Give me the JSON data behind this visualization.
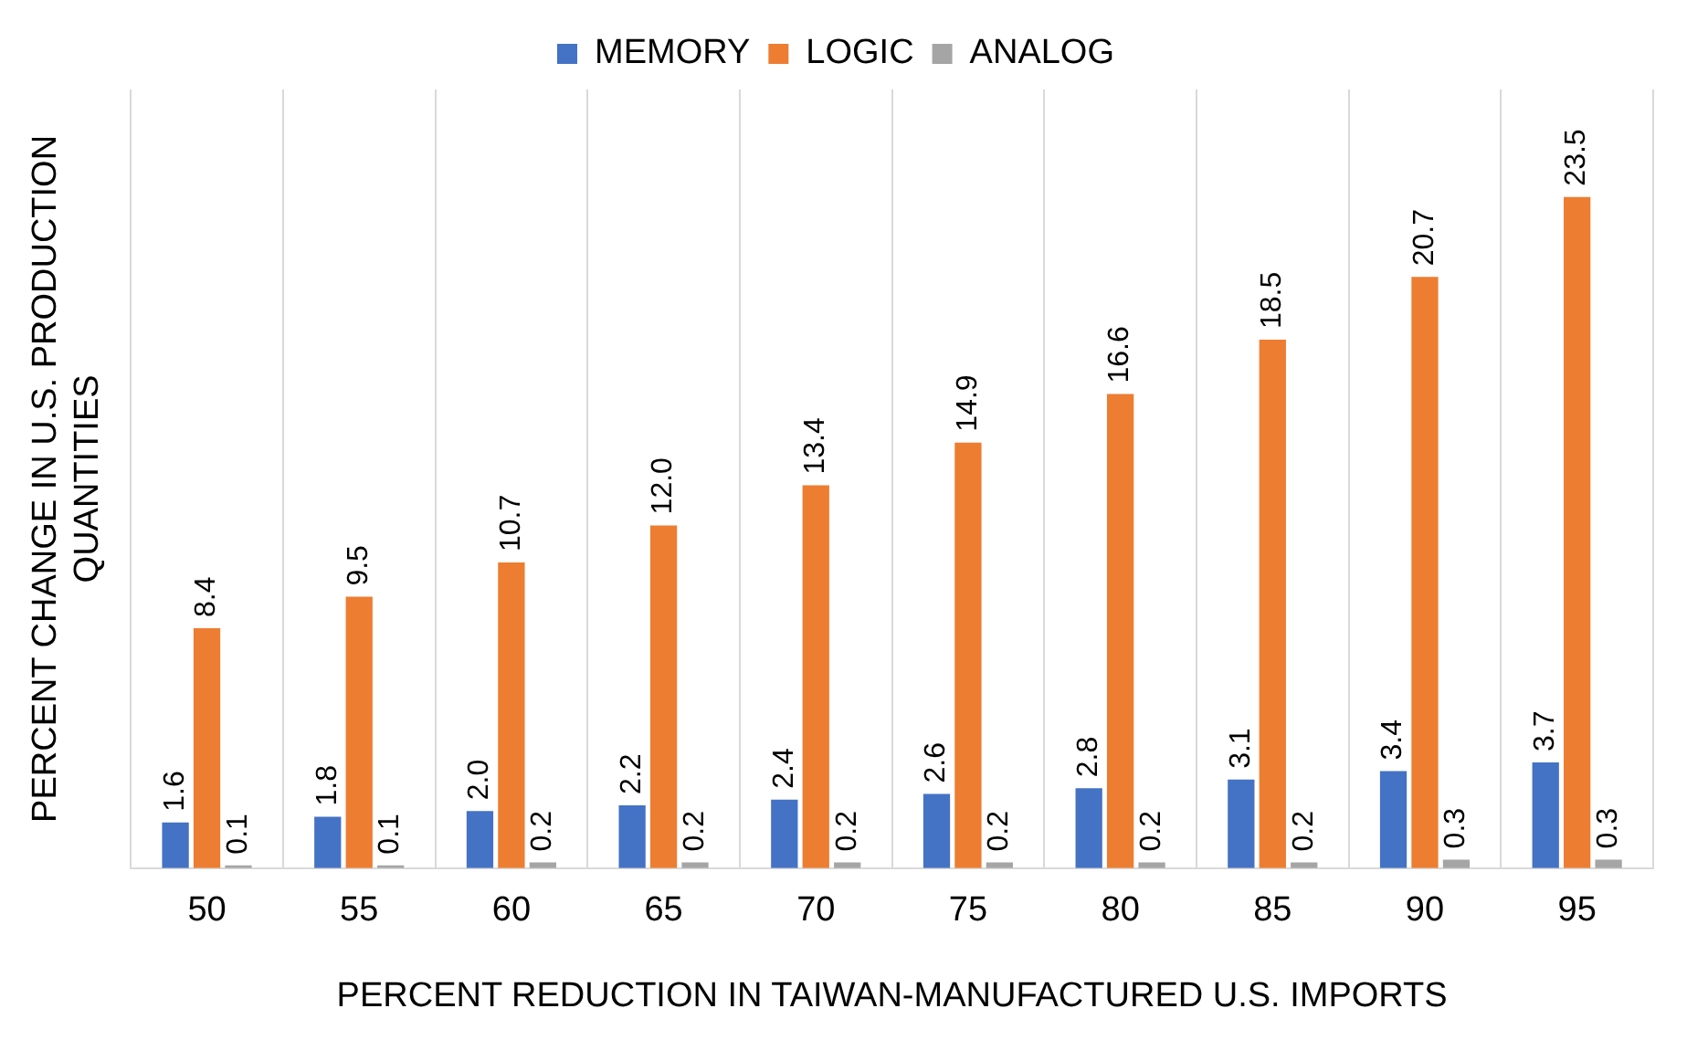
{
  "chart_data": {
    "type": "bar",
    "xlabel": "PERCENT REDUCTION IN TAIWAN-MANUFACTURED U.S. IMPORTS",
    "ylabel": "PERCENT CHANGE IN U.S. PRODUCTION QUANTITIES",
    "categories": [
      "50",
      "55",
      "60",
      "65",
      "70",
      "75",
      "80",
      "85",
      "90",
      "95"
    ],
    "series": [
      {
        "name": "MEMORY",
        "color": "#4472c4",
        "values": [
          1.6,
          1.8,
          2.0,
          2.2,
          2.4,
          2.6,
          2.8,
          3.1,
          3.4,
          3.7
        ],
        "value_labels": [
          "1.6",
          "1.8",
          "2.0",
          "2.2",
          "2.4",
          "2.6",
          "2.8",
          "3.1",
          "3.4",
          "3.7"
        ]
      },
      {
        "name": "LOGIC",
        "color": "#ed7d31",
        "values": [
          8.4,
          9.5,
          10.7,
          12.0,
          13.4,
          14.9,
          16.6,
          18.5,
          20.7,
          23.5
        ],
        "value_labels": [
          "8.4",
          "9.5",
          "10.7",
          "12.0",
          "13.4",
          "14.9",
          "16.6",
          "18.5",
          "20.7",
          "23.5"
        ]
      },
      {
        "name": "ANALOG",
        "color": "#a5a5a5",
        "values": [
          0.1,
          0.1,
          0.2,
          0.2,
          0.2,
          0.2,
          0.2,
          0.2,
          0.3,
          0.3
        ],
        "value_labels": [
          "0.1",
          "0.1",
          "0.2",
          "0.2",
          "0.2",
          "0.2",
          "0.2",
          "0.2",
          "0.3",
          "0.3"
        ]
      }
    ],
    "grid": "x",
    "legend": "top"
  }
}
